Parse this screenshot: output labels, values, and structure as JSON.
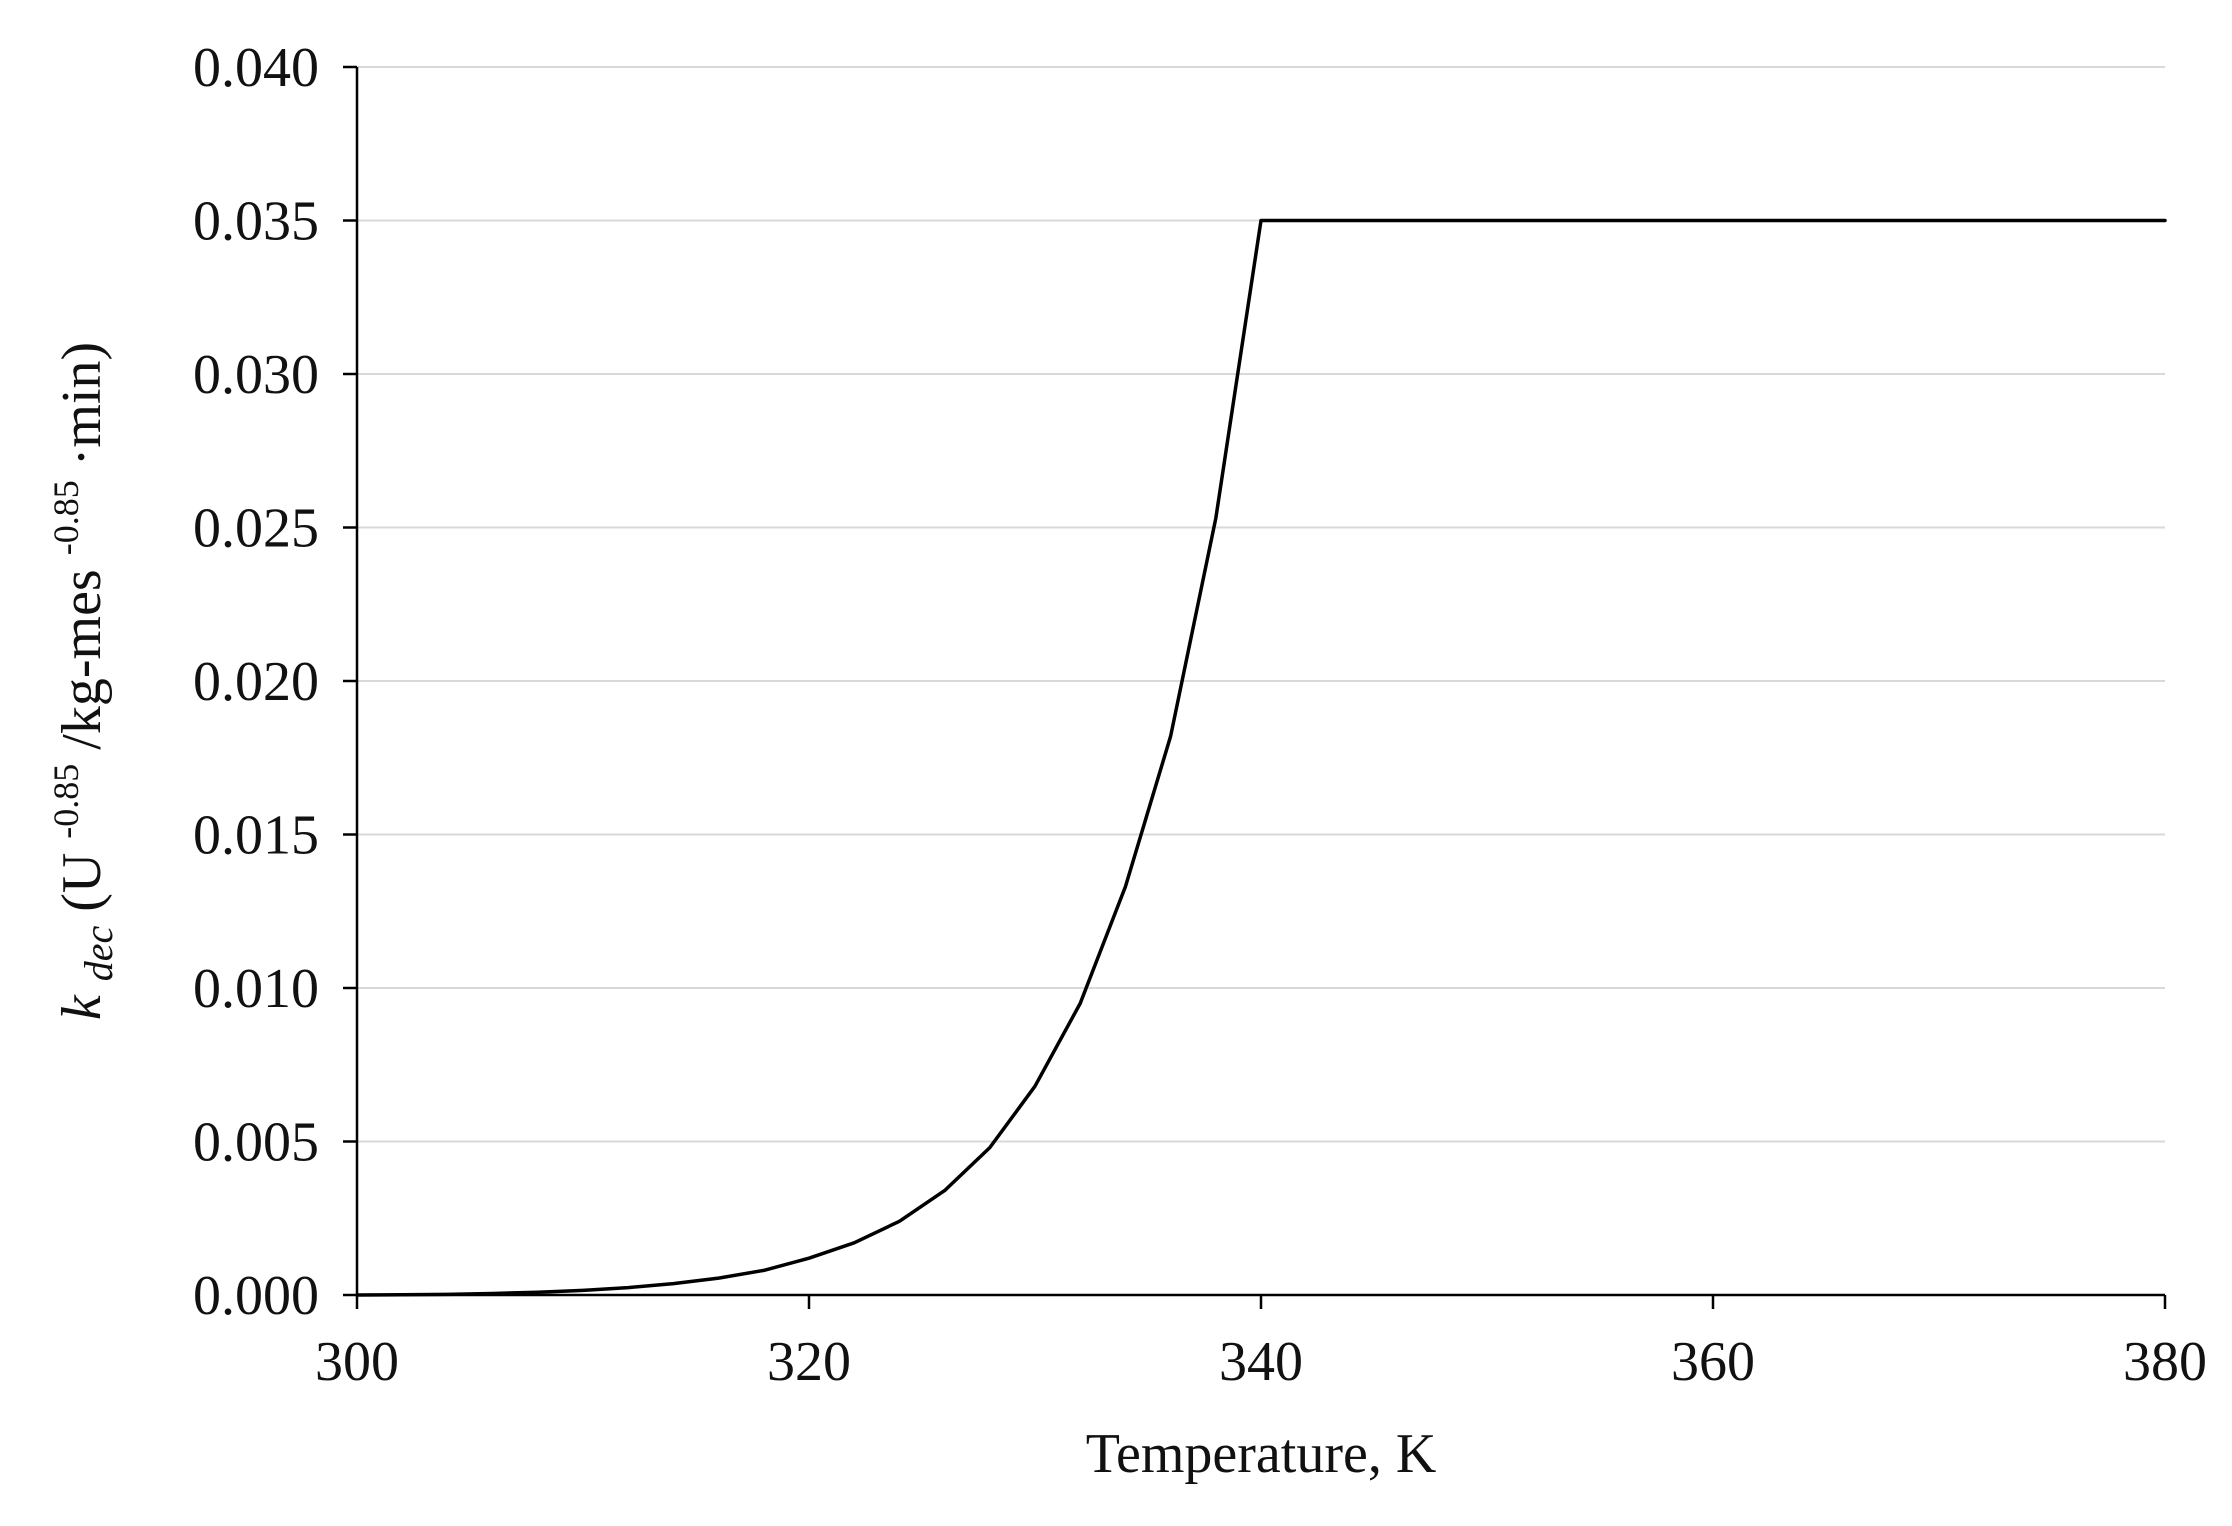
{
  "chart_data": {
    "type": "line",
    "title": "",
    "xlabel": "Temperature, K",
    "ylabel": {
      "symbol": "k",
      "symbol_subscript": "dec",
      "unit_open": " (U",
      "unit_sup1": "-0.85",
      "unit_mid": "/kg-mes",
      "unit_sup2": "-0.85",
      "unit_close": "·min)"
    },
    "xlim": [
      300,
      380
    ],
    "ylim": [
      0.0,
      0.04
    ],
    "x_ticks": [
      300,
      320,
      340,
      360,
      380
    ],
    "x_tick_labels": [
      "300",
      "320",
      "340",
      "360",
      "380"
    ],
    "y_ticks": [
      0.0,
      0.005,
      0.01,
      0.015,
      0.02,
      0.025,
      0.03,
      0.035,
      0.04
    ],
    "y_tick_labels": [
      "0.000",
      "0.005",
      "0.010",
      "0.015",
      "0.020",
      "0.025",
      "0.030",
      "0.035",
      "0.040"
    ],
    "grid": "horizontal",
    "legend": "none",
    "series": [
      {
        "color": "#000000",
        "x": [
          300,
          302,
          304,
          306,
          308,
          310,
          312,
          314,
          316,
          318,
          320,
          322,
          324,
          326,
          328,
          330,
          332,
          334,
          336,
          338,
          340,
          350,
          360,
          370,
          380
        ],
        "y": [
          0.0,
          1e-05,
          2e-05,
          5e-05,
          9e-05,
          0.00015,
          0.00024,
          0.00037,
          0.00055,
          0.0008,
          0.0012,
          0.0017,
          0.0024,
          0.0034,
          0.0048,
          0.0068,
          0.0095,
          0.0133,
          0.0182,
          0.0253,
          0.035,
          0.035,
          0.035,
          0.035,
          0.035
        ]
      }
    ]
  }
}
